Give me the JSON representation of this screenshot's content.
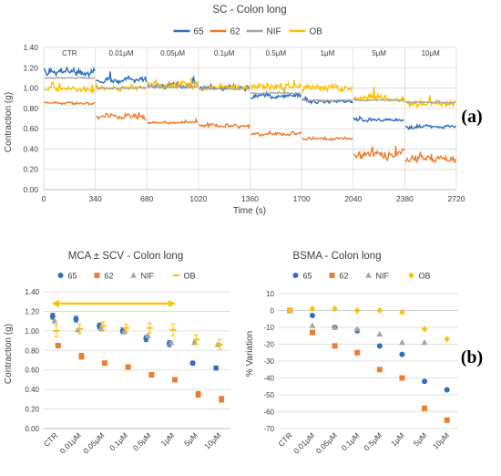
{
  "chart_data": [
    {
      "type": "line",
      "title": "SC - Colon long",
      "xlabel": "Time (s)",
      "ylabel": "Contraction (g)",
      "xlim": [
        0,
        2720
      ],
      "ylim": [
        0,
        1.4
      ],
      "x_ticks": [
        "0",
        "340",
        "680",
        "1020",
        "1360",
        "1700",
        "2040",
        "2380",
        "2720"
      ],
      "y_ticks": [
        "0.00",
        "0.20",
        "0.40",
        "0.60",
        "0.80",
        "1.00",
        "1.20",
        "1.40"
      ],
      "grid": true,
      "legend_position": "top",
      "segments": [
        "CTR",
        "0.01μM",
        "0.05μM",
        "0.1μM",
        "0.5μM",
        "1μM",
        "5μM",
        "10μM"
      ],
      "series": [
        {
          "name": "65",
          "color": "#2E6FBF",
          "segment_means": [
            1.16,
            1.08,
            1.03,
            1.0,
            0.92,
            0.87,
            0.68,
            0.62
          ],
          "noise": [
            0.035,
            0.03,
            0.025,
            0.02,
            0.02,
            0.02,
            0.015,
            0.015
          ]
        },
        {
          "name": "62",
          "color": "#ED7D31",
          "segment_means": [
            0.85,
            0.72,
            0.66,
            0.63,
            0.55,
            0.5,
            0.35,
            0.3
          ],
          "noise": [
            0.015,
            0.03,
            0.012,
            0.02,
            0.015,
            0.012,
            0.035,
            0.035
          ]
        },
        {
          "name": "NIF",
          "color": "#A5A5A5",
          "segment_means": [
            1.1,
            1.0,
            1.01,
            0.99,
            0.95,
            0.88,
            0.88,
            0.86
          ],
          "noise": [
            0.006,
            0.006,
            0.006,
            0.006,
            0.006,
            0.006,
            0.006,
            0.006
          ]
        },
        {
          "name": "OB",
          "color": "#FFC000",
          "segment_means": [
            0.99,
            1.0,
            1.03,
            1.0,
            1.02,
            1.0,
            0.9,
            0.85
          ],
          "noise": [
            0.03,
            0.03,
            0.035,
            0.025,
            0.035,
            0.03,
            0.04,
            0.035
          ]
        }
      ]
    },
    {
      "type": "scatter",
      "title": "MCA ± SCV - Colon long",
      "ylabel": "Contraction (g)",
      "categories": [
        "CTR",
        "0.01μM",
        "0.05μM",
        "0.1μM",
        "0.5μM",
        "1μM",
        "5μM",
        "10μM"
      ],
      "ylim": [
        0,
        1.4
      ],
      "y_ticks": [
        "0.00",
        "0.20",
        "0.40",
        "0.60",
        "0.80",
        "1.00",
        "1.20",
        "1.40"
      ],
      "grid": true,
      "legend_position": "top",
      "arrow_span": [
        "CTR",
        "1μM"
      ],
      "series": [
        {
          "name": "65",
          "color": "#2E6FBF",
          "marker": "circle",
          "values": [
            1.15,
            1.12,
            1.05,
            1.0,
            0.92,
            0.87,
            0.67,
            0.62
          ],
          "errors": [
            0.03,
            0.03,
            0.03,
            0.03,
            0.03,
            0.03,
            0.02,
            0.02
          ]
        },
        {
          "name": "62",
          "color": "#ED7D31",
          "marker": "square",
          "values": [
            0.85,
            0.74,
            0.67,
            0.63,
            0.55,
            0.5,
            0.35,
            0.3
          ],
          "errors": [
            0.02,
            0.03,
            0.02,
            0.02,
            0.02,
            0.02,
            0.03,
            0.03
          ]
        },
        {
          "name": "NIF",
          "color": "#A5A5A5",
          "marker": "triangle",
          "values": [
            1.1,
            1.01,
            1.02,
            0.99,
            0.95,
            0.88,
            0.88,
            0.86
          ],
          "errors": [
            0.01,
            0.01,
            0.01,
            0.01,
            0.01,
            0.01,
            0.01,
            0.01
          ]
        },
        {
          "name": "OB",
          "color": "#FFC000",
          "marker": "dash",
          "values": [
            1.0,
            1.02,
            1.05,
            1.03,
            1.03,
            1.01,
            0.91,
            0.86
          ],
          "errors": [
            0.06,
            0.05,
            0.04,
            0.04,
            0.05,
            0.06,
            0.05,
            0.05
          ]
        }
      ]
    },
    {
      "type": "scatter",
      "title": "BSMA - Colon long",
      "ylabel": "% Variation",
      "categories": [
        "CTR",
        "0.01μM",
        "0.05μM",
        "0.1μM",
        "0.5μM",
        "1μM",
        "5μM",
        "10μM"
      ],
      "ylim": [
        -70,
        10
      ],
      "y_ticks": [
        "10",
        "0",
        "-10",
        "-20",
        "-30",
        "-40",
        "-50",
        "-60",
        "-70"
      ],
      "grid": true,
      "legend_position": "top",
      "series": [
        {
          "name": "65",
          "color": "#2E6FBF",
          "marker": "circle",
          "values": [
            0,
            -3,
            -10,
            -12,
            -21,
            -26,
            -42,
            -47
          ]
        },
        {
          "name": "62",
          "color": "#ED7D31",
          "marker": "square",
          "values": [
            0,
            -13,
            -21,
            -25,
            -35,
            -40,
            -58,
            -65
          ]
        },
        {
          "name": "NIF",
          "color": "#A5A5A5",
          "marker": "triangle",
          "values": [
            0,
            -9,
            -10,
            -11,
            -14,
            -19,
            -19,
            null
          ]
        },
        {
          "name": "OB",
          "color": "#FFC000",
          "marker": "diamond",
          "values": [
            0,
            1,
            1,
            0,
            0,
            -1,
            -11,
            -17
          ]
        }
      ]
    }
  ],
  "panel_labels": {
    "a": "(a)",
    "b": "(b)"
  }
}
